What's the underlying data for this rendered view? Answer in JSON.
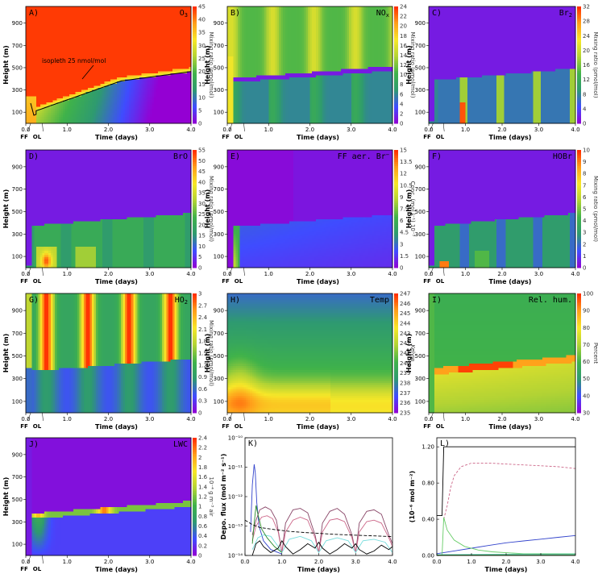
{
  "colormap": [
    "#9400d3",
    "#3f4cff",
    "#2e9a70",
    "#3fb24a",
    "#b2d334",
    "#f7e728",
    "#ff9e1a",
    "#ff2a00"
  ],
  "chart_data": [
    {
      "id": "A",
      "type": "heatmap",
      "letter": "A)",
      "name": "O",
      "sub": "3",
      "xlabel": "Time (days)",
      "ylabel": "Height (m)",
      "cblabel": "Mixing ratio (nmol/mol)",
      "cb_ticks": [
        "0",
        "5",
        "10",
        "15",
        "20",
        "25",
        "30",
        "35",
        "40",
        "45"
      ],
      "annotation": "isopleth 25 nmol/mol",
      "field": "o3",
      "xlim": [
        0,
        4
      ],
      "ylim": [
        0,
        1050
      ]
    },
    {
      "id": "B",
      "type": "heatmap",
      "letter": "B)",
      "name": "NO",
      "sub": "x",
      "xlabel": "Time (days)",
      "ylabel": "Height (m)",
      "cblabel": "Mixing ratio (pmol/mol)",
      "cb_ticks": [
        "0",
        "2",
        "4",
        "6",
        "8",
        "10",
        "12",
        "14",
        "16",
        "18",
        "20",
        "22",
        "24"
      ],
      "field": "nox",
      "xlim": [
        0,
        4
      ],
      "ylim": [
        0,
        1050
      ]
    },
    {
      "id": "C",
      "type": "heatmap",
      "letter": "C)",
      "name": "Br",
      "sub": "2",
      "xlabel": "Time (days)",
      "ylabel": "Height (m)",
      "cblabel": "Mixing ratio (pmol/mol)",
      "cb_ticks": [
        "0",
        "4",
        "8",
        "12",
        "16",
        "20",
        "24",
        "28",
        "32"
      ],
      "field": "br2",
      "xlim": [
        0,
        4
      ],
      "ylim": [
        0,
        1050
      ]
    },
    {
      "id": "D",
      "type": "heatmap",
      "letter": "D)",
      "name": "BrO",
      "sub": "",
      "xlabel": "Time (days)",
      "ylabel": "Height (m)",
      "cblabel": "Mixing ratio (pmol/mol)",
      "cb_ticks": [
        "0",
        "5",
        "10",
        "15",
        "20",
        "25",
        "30",
        "35",
        "40",
        "45",
        "50",
        "55"
      ],
      "field": "bro",
      "xlim": [
        0,
        4
      ],
      "ylim": [
        0,
        1050
      ]
    },
    {
      "id": "E",
      "type": "heatmap",
      "letter": "E)",
      "name": "FF aer. Br",
      "sub": "",
      "sup": "−",
      "xlabel": "Time (days)",
      "ylabel": "Height (m)",
      "cblabel": "Conc. (mol l⁻¹) 10⁻³",
      "cb_ticks": [
        "0",
        "1.5",
        "3",
        "4.5",
        "6",
        "7.5",
        "9",
        "10.5",
        "12",
        "13.5",
        "15"
      ],
      "field": "ffbr",
      "xlim": [
        0,
        4
      ],
      "ylim": [
        0,
        1050
      ]
    },
    {
      "id": "F",
      "type": "heatmap",
      "letter": "F)",
      "name": "HOBr",
      "sub": "",
      "xlabel": "Time (days)",
      "ylabel": "Height (m)",
      "cblabel": "Mixing ratio (pmol/mol)",
      "cb_ticks": [
        "0",
        "1",
        "2",
        "3",
        "4",
        "5",
        "6",
        "7",
        "8",
        "9",
        "10"
      ],
      "field": "hobr",
      "xlim": [
        0,
        4
      ],
      "ylim": [
        0,
        1050
      ]
    },
    {
      "id": "G",
      "type": "heatmap",
      "letter": "G)",
      "name": "HO",
      "sub": "2",
      "xlabel": "Time (days)",
      "ylabel": "Height (m)",
      "cblabel": "Mixing ratio (pmol/mol)",
      "cb_ticks": [
        "0",
        "0.3",
        "0.6",
        "0.9",
        "1.2",
        "1.5",
        "1.8",
        "2.1",
        "2.4",
        "2.7",
        "3"
      ],
      "field": "ho2",
      "xlim": [
        0,
        4
      ],
      "ylim": [
        0,
        1050
      ]
    },
    {
      "id": "H",
      "type": "heatmap",
      "letter": "H)",
      "name": "Temp",
      "sub": "",
      "xlabel": "Time (days)",
      "ylabel": "Height (m)",
      "cblabel": "Kelvin",
      "cb_ticks": [
        "235",
        "236",
        "237",
        "238",
        "239",
        "240",
        "241",
        "242",
        "243",
        "244",
        "245",
        "246",
        "247"
      ],
      "field": "temp",
      "xlim": [
        0,
        4
      ],
      "ylim": [
        0,
        1050
      ]
    },
    {
      "id": "I",
      "type": "heatmap",
      "letter": "I)",
      "name": "Rel. hum.",
      "sub": "",
      "xlabel": "Time (days)",
      "ylabel": "Height (m)",
      "cblabel": "Percent",
      "cb_ticks": [
        "30",
        "40",
        "50",
        "60",
        "70",
        "80",
        "90",
        "100"
      ],
      "field": "rh",
      "xlim": [
        0,
        4
      ],
      "ylim": [
        0,
        1050
      ]
    },
    {
      "id": "J",
      "type": "heatmap",
      "letter": "J)",
      "name": "LWC",
      "sub": "",
      "xlabel": "Time (days)",
      "ylabel": "Height (m)",
      "cblabel": "10⁻⁴ g m⁻³ air",
      "cb_ticks": [
        "0",
        "0.2",
        "0.4",
        "0.6",
        "0.8",
        "1",
        "1.2",
        "1.4",
        "1.6",
        "1.8",
        "2",
        "2.2",
        "2.4"
      ],
      "field": "lwc",
      "xlim": [
        0,
        4
      ],
      "ylim": [
        0,
        1050
      ]
    },
    {
      "id": "K",
      "type": "line",
      "letter": "K)",
      "xlabel": "Time (days)",
      "ylabel": "Depo. flux (mol m⁻² s⁻¹)",
      "ylog": true,
      "ylim": [
        -14,
        -10
      ],
      "yticks": [
        "10⁻¹⁴",
        "10⁻¹³",
        "10⁻¹²",
        "10⁻¹¹",
        "10⁻¹⁰"
      ],
      "xlim": [
        0,
        4
      ],
      "series": [
        {
          "color": "#3344cc",
          "x": [
            0.15,
            0.2,
            0.25,
            0.28,
            0.32,
            0.38,
            0.5,
            0.7,
            0.9,
            1.0
          ],
          "y": [
            -13.2,
            -11.6,
            -10.9,
            -11.2,
            -12.2,
            -13.0,
            -13.5,
            -13.8,
            -13.9,
            -13.95
          ]
        },
        {
          "color": "#884466",
          "x": [
            0.2,
            0.3,
            0.4,
            0.55,
            0.7,
            0.85,
            0.95,
            1.0,
            1.1,
            1.3,
            1.5,
            1.7,
            1.9,
            2.0,
            2.1,
            2.3,
            2.5,
            2.7,
            2.9,
            3.0,
            3.1,
            3.3,
            3.5,
            3.7,
            3.9,
            4.0
          ],
          "y": [
            -13.3,
            -12.8,
            -12.45,
            -12.35,
            -12.45,
            -12.8,
            -13.5,
            -13.9,
            -12.9,
            -12.45,
            -12.4,
            -12.55,
            -13.3,
            -13.9,
            -12.9,
            -12.5,
            -12.4,
            -12.6,
            -13.3,
            -13.9,
            -12.9,
            -12.5,
            -12.45,
            -12.6,
            -13.3,
            -13.6
          ]
        },
        {
          "color": "#cc6688",
          "x": [
            0.2,
            0.3,
            0.45,
            0.6,
            0.75,
            0.9,
            1.0,
            1.1,
            1.3,
            1.5,
            1.7,
            1.9,
            2.0,
            2.1,
            2.3,
            2.5,
            2.7,
            2.9,
            3.0,
            3.1,
            3.3,
            3.5,
            3.7,
            3.9,
            4.0
          ],
          "y": [
            -13.5,
            -13.0,
            -12.7,
            -12.65,
            -12.75,
            -13.2,
            -13.9,
            -13.2,
            -12.8,
            -12.7,
            -12.8,
            -13.4,
            -13.9,
            -13.2,
            -12.8,
            -12.75,
            -12.85,
            -13.4,
            -13.9,
            -13.2,
            -12.85,
            -12.8,
            -12.9,
            -13.4,
            -13.7
          ]
        },
        {
          "color": "#77dddd",
          "x": [
            0.2,
            0.35,
            0.5,
            0.7,
            0.9,
            1.0,
            1.2,
            1.5,
            1.8,
            2.0,
            2.2,
            2.5,
            2.8,
            3.0,
            3.2,
            3.5,
            3.8,
            4.0
          ],
          "y": [
            -13.8,
            -13.4,
            -13.3,
            -13.35,
            -13.7,
            -13.9,
            -13.45,
            -13.35,
            -13.5,
            -13.9,
            -13.5,
            -13.4,
            -13.5,
            -13.9,
            -13.5,
            -13.45,
            -13.55,
            -13.9
          ]
        },
        {
          "color": "#2a8a2a",
          "x": [
            0.2,
            0.25,
            0.3,
            0.35,
            0.45,
            0.6,
            0.8,
            1.0
          ],
          "y": [
            -13.6,
            -12.9,
            -12.3,
            -12.6,
            -13.1,
            -13.4,
            -13.7,
            -13.9
          ]
        },
        {
          "color": "#000000",
          "dash": "4,2",
          "x": [
            0,
            0.2,
            0.4,
            0.8,
            1.2,
            1.6,
            2.0,
            2.4,
            2.8,
            3.2,
            3.6,
            4.0
          ],
          "y": [
            -12.8,
            -12.95,
            -13.05,
            -13.12,
            -13.18,
            -13.22,
            -13.25,
            -13.28,
            -13.3,
            -13.32,
            -13.34,
            -13.36
          ]
        },
        {
          "color": "#000000",
          "x": [
            0.2,
            0.3,
            0.4,
            0.5,
            0.7,
            0.9,
            1.0,
            1.1,
            1.3,
            1.5,
            1.7,
            1.9,
            2.0,
            2.1,
            2.3,
            2.5,
            2.7,
            2.9,
            3.0,
            3.1,
            3.3,
            3.5,
            3.7,
            3.9,
            4.0
          ],
          "y": [
            -14.0,
            -13.6,
            -13.5,
            -13.7,
            -13.9,
            -13.75,
            -13.5,
            -13.7,
            -13.95,
            -13.8,
            -13.6,
            -13.75,
            -13.55,
            -13.75,
            -13.95,
            -13.8,
            -13.6,
            -13.75,
            -13.6,
            -13.8,
            -13.95,
            -13.85,
            -13.65,
            -13.8,
            -13.7
          ]
        }
      ]
    },
    {
      "id": "L",
      "type": "line",
      "letter": "L)",
      "xlabel": "Time (days)",
      "ylabel": "(10⁻⁶ mol m⁻²)",
      "ylim": [
        0,
        1.3
      ],
      "yticks": [
        "0.00",
        "0.40",
        "0.80",
        "1.20"
      ],
      "yvals": [
        0,
        0.4,
        0.8,
        1.2
      ],
      "xlim": [
        0,
        4
      ],
      "series": [
        {
          "color": "#000000",
          "x": [
            0,
            0.15,
            0.2,
            0.25,
            4.0
          ],
          "y": [
            0.44,
            0.44,
            1.2,
            1.2,
            1.2
          ]
        },
        {
          "color": "#cc6688",
          "dash": "3,2",
          "x": [
            0.2,
            0.3,
            0.4,
            0.5,
            0.7,
            1.0,
            1.5,
            2.0,
            2.5,
            3.0,
            3.5,
            4.0
          ],
          "y": [
            0.4,
            0.55,
            0.75,
            0.88,
            0.98,
            1.02,
            1.02,
            1.01,
            1.0,
            0.99,
            0.98,
            0.96
          ]
        },
        {
          "color": "#3344cc",
          "x": [
            0,
            0.5,
            1.0,
            1.5,
            2.0,
            2.5,
            3.0,
            3.5,
            4.0
          ],
          "y": [
            0.02,
            0.05,
            0.08,
            0.11,
            0.14,
            0.16,
            0.18,
            0.2,
            0.22
          ]
        },
        {
          "color": "#66cc66",
          "x": [
            0.15,
            0.2,
            0.3,
            0.5,
            0.8,
            1.2,
            1.6,
            2.0,
            2.5,
            3.0,
            3.5,
            4.0
          ],
          "y": [
            0.0,
            0.42,
            0.28,
            0.17,
            0.1,
            0.06,
            0.04,
            0.03,
            0.02,
            0.02,
            0.02,
            0.02
          ]
        },
        {
          "color": "#77dddd",
          "x": [
            0,
            1,
            2,
            3,
            4
          ],
          "y": [
            0.01,
            0.012,
            0.014,
            0.015,
            0.016
          ]
        },
        {
          "color": "#2a8a2a",
          "x": [
            0,
            1,
            2,
            3,
            4
          ],
          "y": [
            0.005,
            0.006,
            0.007,
            0.008,
            0.008
          ]
        }
      ]
    }
  ],
  "ff_label": "FF",
  "ol_label": "OL"
}
